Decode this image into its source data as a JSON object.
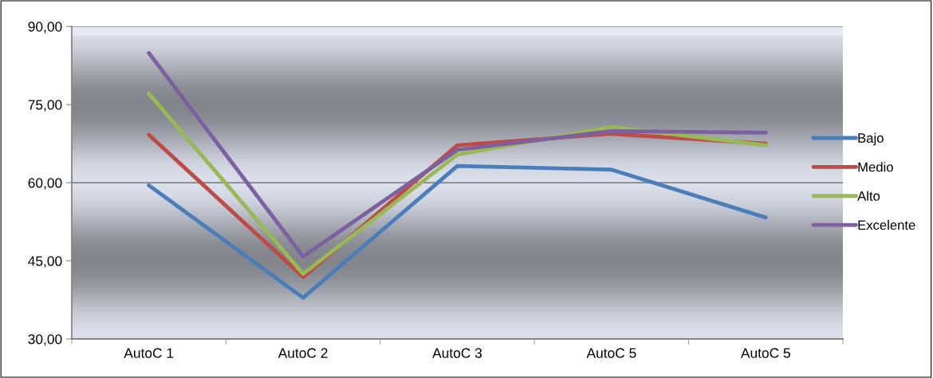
{
  "chart_data": {
    "type": "line",
    "categories": [
      "AutoC 1",
      "AutoC 2",
      "AutoC 3",
      "AutoC 5",
      "AutoC 5"
    ],
    "series": [
      {
        "name": "Bajo",
        "color": "#4a7ebb",
        "values": [
          59.5,
          37.9,
          63.2,
          62.5,
          53.3
        ]
      },
      {
        "name": "Medio",
        "color": "#be4b48",
        "values": [
          69.2,
          41.9,
          67.2,
          69.4,
          67.5
        ]
      },
      {
        "name": "Alto",
        "color": "#98b954",
        "values": [
          77.1,
          42.5,
          65.4,
          70.7,
          67.2
        ]
      },
      {
        "name": "Excelente",
        "color": "#7d60a0",
        "values": [
          84.9,
          45.8,
          66.3,
          69.9,
          69.6
        ]
      }
    ],
    "ylim": [
      30,
      90
    ],
    "yticks": [
      {
        "value": 30,
        "label": "30,00"
      },
      {
        "value": 45,
        "label": "45,00"
      },
      {
        "value": 60,
        "label": "60,00"
      },
      {
        "value": 75,
        "label": "75,00"
      },
      {
        "value": 90,
        "label": "90,00"
      }
    ],
    "grid": "y",
    "legend": "right",
    "marker": "none",
    "line_style": "solid"
  }
}
